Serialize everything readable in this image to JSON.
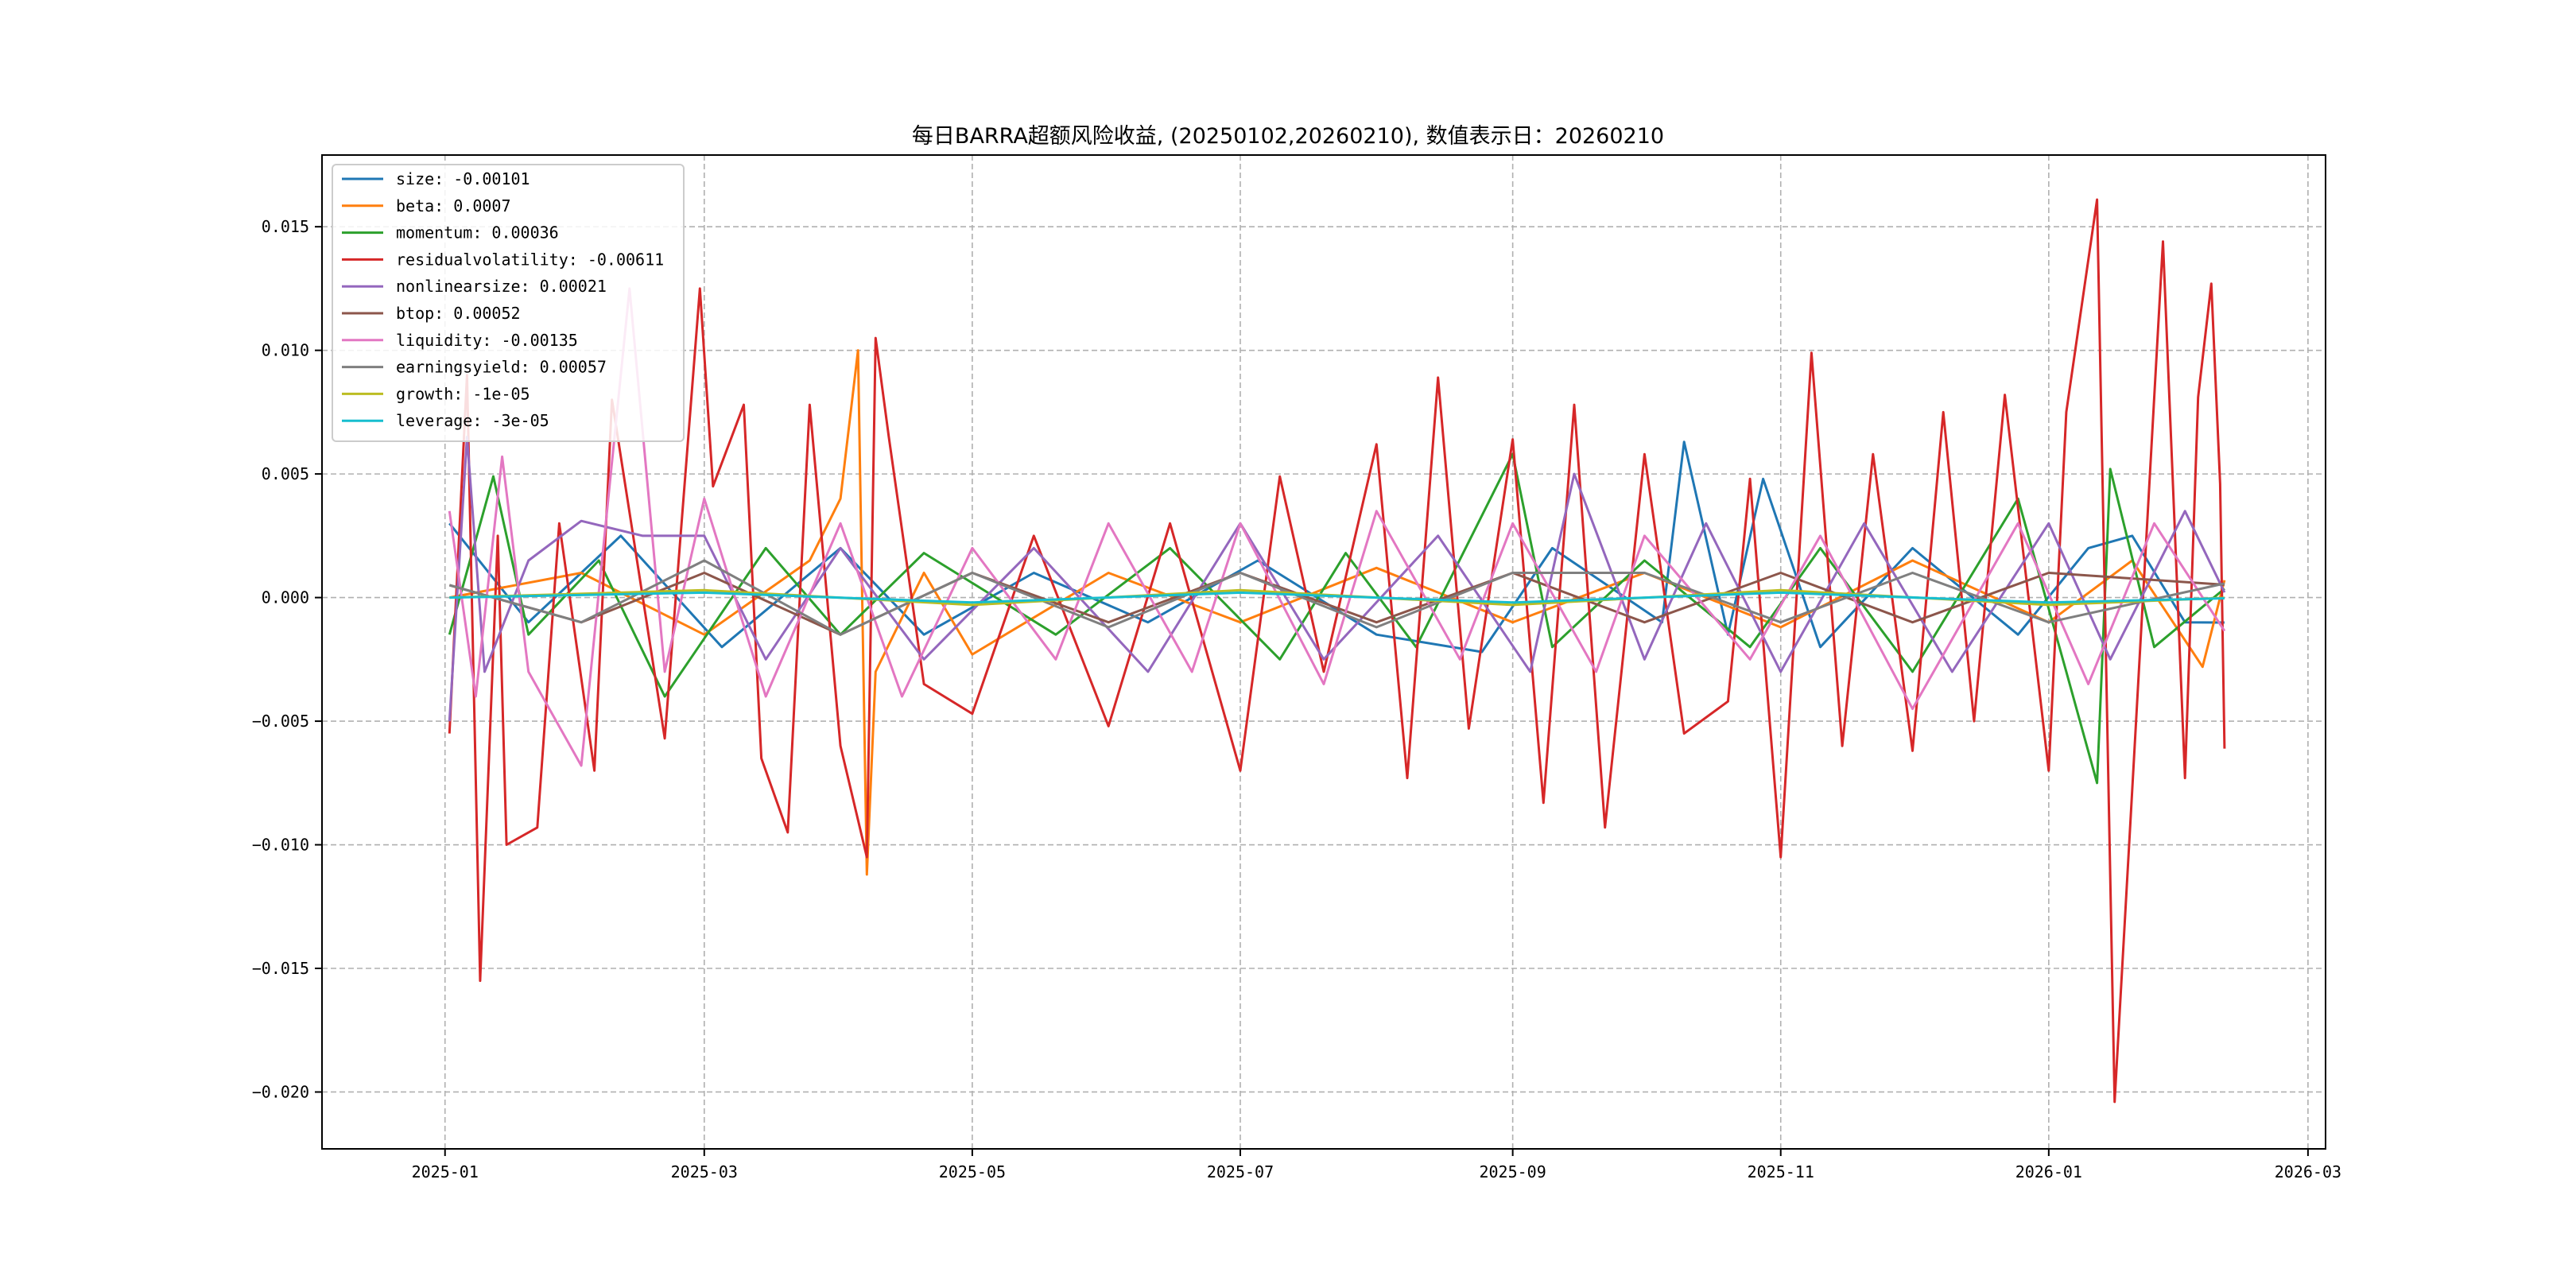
{
  "chart_data": {
    "type": "line",
    "title": "每日BARRA超额风险收益, (20250102,20260210),  数值表示日：20260210",
    "xlabel": "",
    "ylabel": "",
    "xlim": [
      "2024-12-04",
      "2026-03-05"
    ],
    "ylim": [
      -0.0223,
      0.0179
    ],
    "x_ticks": [
      "2025-01",
      "2025-03",
      "2025-05",
      "2025-07",
      "2025-09",
      "2025-11",
      "2026-01",
      "2026-03"
    ],
    "y_ticks": [
      -0.02,
      -0.015,
      -0.01,
      -0.005,
      0.0,
      0.005,
      0.01,
      0.015
    ],
    "y_tick_labels": [
      "−0.020",
      "−0.015",
      "−0.010",
      "−0.005",
      "0.000",
      "0.005",
      "0.010",
      "0.015"
    ],
    "grid": true,
    "legend_position": "top-left",
    "start_date": "2025-01-02",
    "end_date": "2026-02-10",
    "series": [
      {
        "name": "size: -0.00101",
        "color": "#1f77b4",
        "points": [
          [
            "2025-01-02",
            0.003
          ],
          [
            "2025-01-20",
            -0.001
          ],
          [
            "2025-02-10",
            0.0025
          ],
          [
            "2025-03-05",
            -0.002
          ],
          [
            "2025-04-01",
            0.002
          ],
          [
            "2025-04-20",
            -0.0015
          ],
          [
            "2025-05-15",
            0.001
          ],
          [
            "2025-06-10",
            -0.001
          ],
          [
            "2025-07-05",
            0.0015
          ],
          [
            "2025-08-01",
            -0.0015
          ],
          [
            "2025-08-25",
            -0.0022
          ],
          [
            "2025-09-10",
            0.002
          ],
          [
            "2025-10-05",
            -0.001
          ],
          [
            "2025-10-10",
            0.0063
          ],
          [
            "2025-10-20",
            -0.0015
          ],
          [
            "2025-10-28",
            0.0048
          ],
          [
            "2025-11-10",
            -0.002
          ],
          [
            "2025-12-01",
            0.002
          ],
          [
            "2025-12-25",
            -0.0015
          ],
          [
            "2026-01-10",
            0.002
          ],
          [
            "2026-01-20",
            0.0025
          ],
          [
            "2026-02-01",
            -0.001
          ],
          [
            "2026-02-10",
            -0.00101
          ]
        ]
      },
      {
        "name": "beta: 0.0007",
        "color": "#ff7f0e",
        "points": [
          [
            "2025-01-02",
            0.0
          ],
          [
            "2025-02-01",
            0.001
          ],
          [
            "2025-03-01",
            -0.0015
          ],
          [
            "2025-03-25",
            0.0015
          ],
          [
            "2025-04-01",
            0.004
          ],
          [
            "2025-04-05",
            0.01
          ],
          [
            "2025-04-07",
            -0.0112
          ],
          [
            "2025-04-09",
            -0.003
          ],
          [
            "2025-04-20",
            0.001
          ],
          [
            "2025-05-01",
            -0.0023
          ],
          [
            "2025-06-01",
            0.001
          ],
          [
            "2025-07-01",
            -0.001
          ],
          [
            "2025-08-01",
            0.0012
          ],
          [
            "2025-09-01",
            -0.001
          ],
          [
            "2025-10-01",
            0.001
          ],
          [
            "2025-11-01",
            -0.0012
          ],
          [
            "2025-12-01",
            0.0015
          ],
          [
            "2026-01-01",
            -0.001
          ],
          [
            "2026-01-20",
            0.0015
          ],
          [
            "2026-02-05",
            -0.0028
          ],
          [
            "2026-02-10",
            0.0007
          ]
        ]
      },
      {
        "name": "momentum: 0.00036",
        "color": "#2ca02c",
        "points": [
          [
            "2025-01-02",
            -0.0015
          ],
          [
            "2025-01-12",
            0.0049
          ],
          [
            "2025-01-20",
            -0.0015
          ],
          [
            "2025-02-05",
            0.0015
          ],
          [
            "2025-02-20",
            -0.004
          ],
          [
            "2025-03-15",
            0.002
          ],
          [
            "2025-04-01",
            -0.0015
          ],
          [
            "2025-04-20",
            0.0018
          ],
          [
            "2025-05-20",
            -0.0015
          ],
          [
            "2025-06-15",
            0.002
          ],
          [
            "2025-07-10",
            -0.0025
          ],
          [
            "2025-07-25",
            0.0018
          ],
          [
            "2025-08-10",
            -0.002
          ],
          [
            "2025-09-01",
            0.0058
          ],
          [
            "2025-09-10",
            -0.002
          ],
          [
            "2025-10-01",
            0.0015
          ],
          [
            "2025-10-25",
            -0.002
          ],
          [
            "2025-11-10",
            0.002
          ],
          [
            "2025-12-01",
            -0.003
          ],
          [
            "2025-12-25",
            0.004
          ],
          [
            "2026-01-05",
            -0.003
          ],
          [
            "2026-01-12",
            -0.0075
          ],
          [
            "2026-01-15",
            0.0052
          ],
          [
            "2026-01-25",
            -0.002
          ],
          [
            "2026-02-10",
            0.00036
          ]
        ]
      },
      {
        "name": "residualvolatility: -0.00611",
        "color": "#d62728",
        "points": [
          [
            "2025-01-02",
            -0.0055
          ],
          [
            "2025-01-06",
            0.009
          ],
          [
            "2025-01-09",
            -0.0155
          ],
          [
            "2025-01-13",
            0.0025
          ],
          [
            "2025-01-15",
            -0.01
          ],
          [
            "2025-01-22",
            -0.0093
          ],
          [
            "2025-01-27",
            0.003
          ],
          [
            "2025-02-04",
            -0.007
          ],
          [
            "2025-02-08",
            0.008
          ],
          [
            "2025-02-20",
            -0.0057
          ],
          [
            "2025-02-28",
            0.0125
          ],
          [
            "2025-03-03",
            0.0045
          ],
          [
            "2025-03-10",
            0.0078
          ],
          [
            "2025-03-14",
            -0.0065
          ],
          [
            "2025-03-20",
            -0.0095
          ],
          [
            "2025-03-25",
            0.0078
          ],
          [
            "2025-04-01",
            -0.006
          ],
          [
            "2025-04-07",
            -0.0105
          ],
          [
            "2025-04-09",
            0.0105
          ],
          [
            "2025-04-12",
            0.0065
          ],
          [
            "2025-04-20",
            -0.0035
          ],
          [
            "2025-05-01",
            -0.0047
          ],
          [
            "2025-05-15",
            0.0025
          ],
          [
            "2025-06-01",
            -0.0052
          ],
          [
            "2025-06-15",
            0.003
          ],
          [
            "2025-07-01",
            -0.007
          ],
          [
            "2025-07-10",
            0.0049
          ],
          [
            "2025-07-20",
            -0.003
          ],
          [
            "2025-08-01",
            0.0062
          ],
          [
            "2025-08-08",
            -0.0073
          ],
          [
            "2025-08-15",
            0.0089
          ],
          [
            "2025-08-22",
            -0.0053
          ],
          [
            "2025-09-01",
            0.0064
          ],
          [
            "2025-09-08",
            -0.0083
          ],
          [
            "2025-09-15",
            0.0078
          ],
          [
            "2025-09-22",
            -0.0093
          ],
          [
            "2025-10-01",
            0.0058
          ],
          [
            "2025-10-10",
            -0.0055
          ],
          [
            "2025-10-20",
            -0.0042
          ],
          [
            "2025-10-25",
            0.0048
          ],
          [
            "2025-11-01",
            -0.0105
          ],
          [
            "2025-11-08",
            0.0099
          ],
          [
            "2025-11-15",
            -0.006
          ],
          [
            "2025-11-22",
            0.0058
          ],
          [
            "2025-12-01",
            -0.0062
          ],
          [
            "2025-12-08",
            0.0075
          ],
          [
            "2025-12-15",
            -0.005
          ],
          [
            "2025-12-22",
            0.0082
          ],
          [
            "2026-01-01",
            -0.007
          ],
          [
            "2026-01-05",
            0.0075
          ],
          [
            "2026-01-12",
            0.0161
          ],
          [
            "2026-01-16",
            -0.0204
          ],
          [
            "2026-01-20",
            -0.0078
          ],
          [
            "2026-01-27",
            0.0144
          ],
          [
            "2026-02-01",
            -0.0073
          ],
          [
            "2026-02-04",
            0.0081
          ],
          [
            "2026-02-07",
            0.0127
          ],
          [
            "2026-02-09",
            0.0046
          ],
          [
            "2026-02-10",
            -0.00611
          ]
        ]
      },
      {
        "name": "nonlinearsize: 0.00021",
        "color": "#9467bd",
        "points": [
          [
            "2025-01-02",
            -0.005
          ],
          [
            "2025-01-06",
            0.0065
          ],
          [
            "2025-01-10",
            -0.003
          ],
          [
            "2025-01-20",
            0.0015
          ],
          [
            "2025-02-01",
            0.0031
          ],
          [
            "2025-02-15",
            0.0025
          ],
          [
            "2025-03-01",
            0.0025
          ],
          [
            "2025-03-15",
            -0.0025
          ],
          [
            "2025-04-01",
            0.002
          ],
          [
            "2025-04-20",
            -0.0025
          ],
          [
            "2025-05-15",
            0.002
          ],
          [
            "2025-06-10",
            -0.003
          ],
          [
            "2025-07-01",
            0.003
          ],
          [
            "2025-07-20",
            -0.0025
          ],
          [
            "2025-08-15",
            0.0025
          ],
          [
            "2025-09-05",
            -0.003
          ],
          [
            "2025-09-15",
            0.005
          ],
          [
            "2025-10-01",
            -0.0025
          ],
          [
            "2025-10-15",
            0.003
          ],
          [
            "2025-11-01",
            -0.003
          ],
          [
            "2025-11-20",
            0.003
          ],
          [
            "2025-12-10",
            -0.003
          ],
          [
            "2026-01-01",
            0.003
          ],
          [
            "2026-01-15",
            -0.0025
          ],
          [
            "2026-02-01",
            0.0035
          ],
          [
            "2026-02-10",
            0.00021
          ]
        ]
      },
      {
        "name": "btop: 0.00052",
        "color": "#8c564b",
        "points": [
          [
            "2025-01-02",
            0.0005
          ],
          [
            "2025-02-01",
            -0.001
          ],
          [
            "2025-03-01",
            0.001
          ],
          [
            "2025-04-01",
            -0.0015
          ],
          [
            "2025-05-01",
            0.001
          ],
          [
            "2025-06-01",
            -0.001
          ],
          [
            "2025-07-01",
            0.001
          ],
          [
            "2025-08-01",
            -0.001
          ],
          [
            "2025-09-01",
            0.001
          ],
          [
            "2025-10-01",
            -0.001
          ],
          [
            "2025-11-01",
            0.001
          ],
          [
            "2025-12-01",
            -0.001
          ],
          [
            "2026-01-01",
            0.001
          ],
          [
            "2026-02-10",
            0.00052
          ]
        ]
      },
      {
        "name": "liquidity: -0.00135",
        "color": "#e377c2",
        "points": [
          [
            "2025-01-02",
            0.0035
          ],
          [
            "2025-01-08",
            -0.004
          ],
          [
            "2025-01-14",
            0.0057
          ],
          [
            "2025-01-20",
            -0.003
          ],
          [
            "2025-02-01",
            -0.0068
          ],
          [
            "2025-02-12",
            0.0125
          ],
          [
            "2025-02-20",
            -0.003
          ],
          [
            "2025-03-01",
            0.004
          ],
          [
            "2025-03-15",
            -0.004
          ],
          [
            "2025-04-01",
            0.003
          ],
          [
            "2025-04-15",
            -0.004
          ],
          [
            "2025-05-01",
            0.002
          ],
          [
            "2025-05-20",
            -0.0025
          ],
          [
            "2025-06-01",
            0.003
          ],
          [
            "2025-06-20",
            -0.003
          ],
          [
            "2025-07-01",
            0.003
          ],
          [
            "2025-07-20",
            -0.0035
          ],
          [
            "2025-08-01",
            0.0035
          ],
          [
            "2025-08-20",
            -0.0025
          ],
          [
            "2025-09-01",
            0.003
          ],
          [
            "2025-09-20",
            -0.003
          ],
          [
            "2025-10-01",
            0.0025
          ],
          [
            "2025-10-25",
            -0.0025
          ],
          [
            "2025-11-10",
            0.0025
          ],
          [
            "2025-12-01",
            -0.0045
          ],
          [
            "2025-12-25",
            0.003
          ],
          [
            "2026-01-10",
            -0.0035
          ],
          [
            "2026-01-25",
            0.003
          ],
          [
            "2026-02-10",
            -0.00135
          ]
        ]
      },
      {
        "name": "earningsyield: 0.00057",
        "color": "#7f7f7f",
        "points": [
          [
            "2025-01-02",
            0.0005
          ],
          [
            "2025-02-01",
            -0.001
          ],
          [
            "2025-03-01",
            0.0015
          ],
          [
            "2025-04-01",
            -0.0015
          ],
          [
            "2025-05-01",
            0.001
          ],
          [
            "2025-06-01",
            -0.0012
          ],
          [
            "2025-07-01",
            0.001
          ],
          [
            "2025-08-01",
            -0.0012
          ],
          [
            "2025-09-01",
            0.001
          ],
          [
            "2025-10-01",
            0.001
          ],
          [
            "2025-11-01",
            -0.001
          ],
          [
            "2025-12-01",
            0.001
          ],
          [
            "2026-01-01",
            -0.001
          ],
          [
            "2026-02-10",
            0.00057
          ]
        ]
      },
      {
        "name": "growth: -1e-05",
        "color": "#bcbd22",
        "points": [
          [
            "2025-01-02",
            0.0
          ],
          [
            "2025-03-01",
            0.0003
          ],
          [
            "2025-05-01",
            -0.0003
          ],
          [
            "2025-07-01",
            0.0003
          ],
          [
            "2025-09-01",
            -0.0003
          ],
          [
            "2025-11-01",
            0.0003
          ],
          [
            "2026-01-01",
            -0.0003
          ],
          [
            "2026-02-10",
            -1e-05
          ]
        ]
      },
      {
        "name": "leverage: -3e-05",
        "color": "#17becf",
        "points": [
          [
            "2025-01-02",
            0.0
          ],
          [
            "2025-03-01",
            0.0002
          ],
          [
            "2025-05-01",
            -0.0002
          ],
          [
            "2025-07-01",
            0.0002
          ],
          [
            "2025-09-01",
            -0.0002
          ],
          [
            "2025-11-01",
            0.0002
          ],
          [
            "2026-01-01",
            -0.0002
          ],
          [
            "2026-02-10",
            -3e-05
          ]
        ]
      }
    ]
  }
}
